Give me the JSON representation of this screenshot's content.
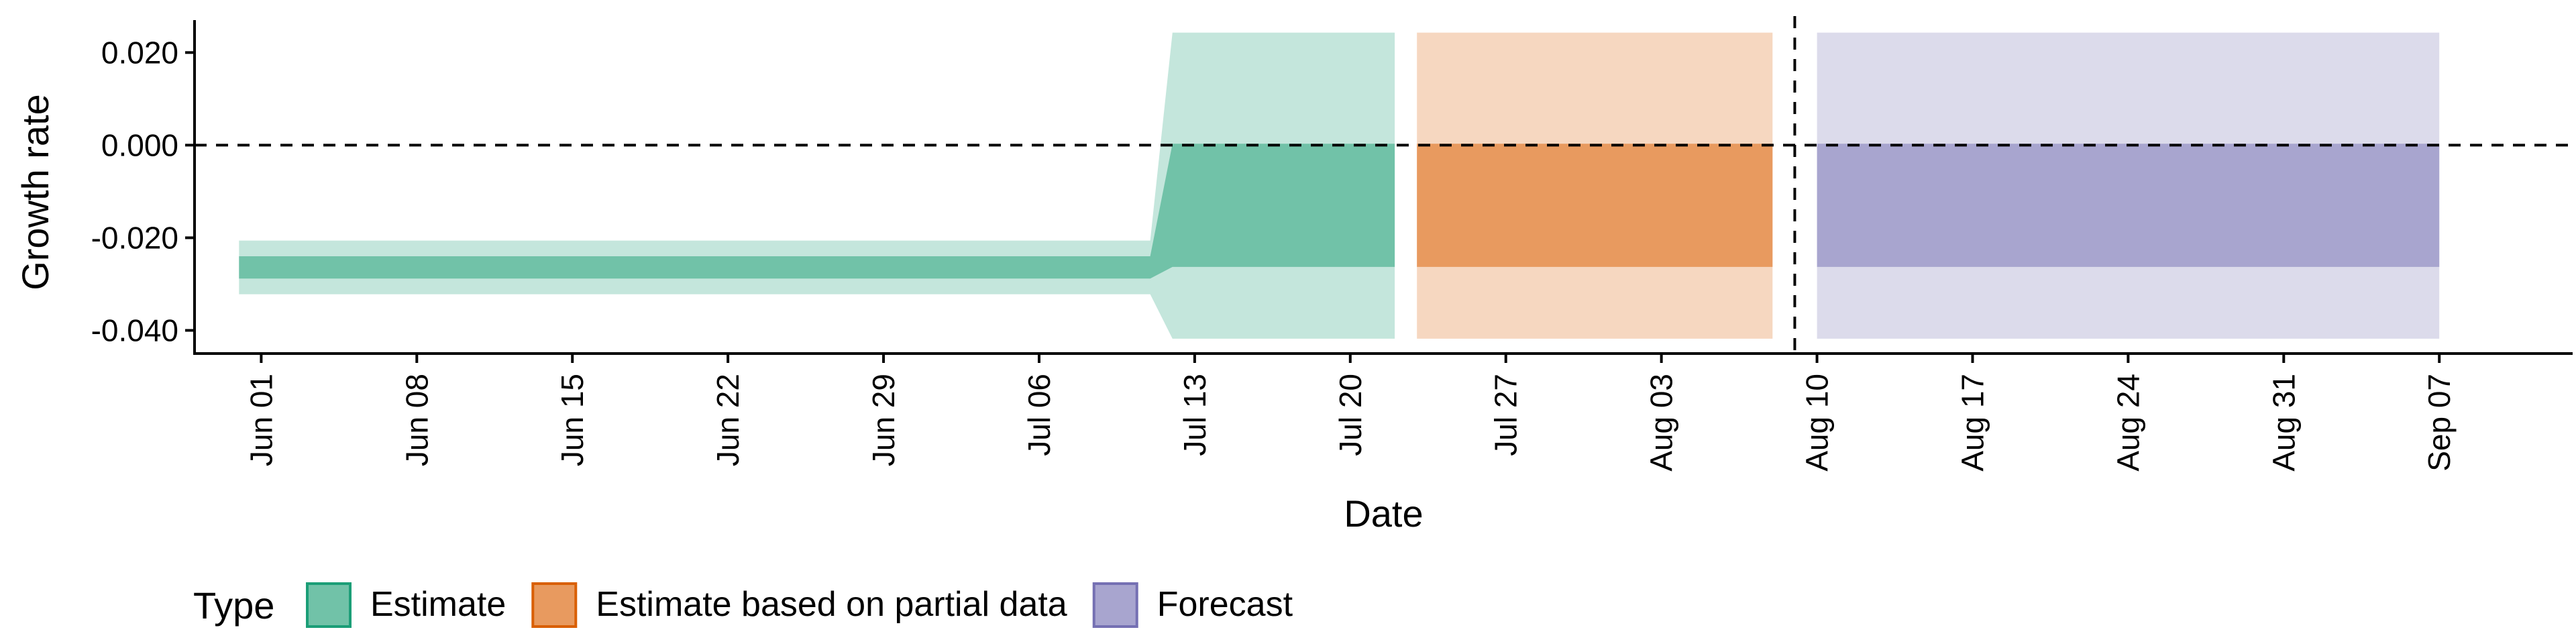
{
  "chart_data": {
    "type": "area",
    "xlabel": "Date",
    "ylabel": "Growth rate",
    "x_start_date": "2021-05-29",
    "x_end_date": "2021-09-13",
    "x_ticks": [
      {
        "date": "2021-06-01",
        "label": "Jun 01"
      },
      {
        "date": "2021-06-08",
        "label": "Jun 08"
      },
      {
        "date": "2021-06-15",
        "label": "Jun 15"
      },
      {
        "date": "2021-06-22",
        "label": "Jun 22"
      },
      {
        "date": "2021-06-29",
        "label": "Jun 29"
      },
      {
        "date": "2021-07-06",
        "label": "Jul 06"
      },
      {
        "date": "2021-07-13",
        "label": "Jul 13"
      },
      {
        "date": "2021-07-20",
        "label": "Jul 20"
      },
      {
        "date": "2021-07-27",
        "label": "Jul 27"
      },
      {
        "date": "2021-08-03",
        "label": "Aug 03"
      },
      {
        "date": "2021-08-10",
        "label": "Aug 10"
      },
      {
        "date": "2021-08-17",
        "label": "Aug 17"
      },
      {
        "date": "2021-08-24",
        "label": "Aug 24"
      },
      {
        "date": "2021-08-31",
        "label": "Aug 31"
      },
      {
        "date": "2021-09-07",
        "label": "Sep 07"
      }
    ],
    "ylim": [
      -0.045,
      0.027
    ],
    "y_ticks": [
      {
        "value": 0.02,
        "label": "0.020"
      },
      {
        "value": 0.0,
        "label": "0.000"
      },
      {
        "value": -0.02,
        "label": "-0.020"
      },
      {
        "value": -0.04,
        "label": "-0.040"
      }
    ],
    "hline_y": 0.0,
    "vline_x": "2021-08-09",
    "grid": false,
    "legend_position": "bottom-left",
    "legend_title": "Type",
    "series": [
      {
        "name": "Estimate",
        "color": "#1b9e77",
        "fill_inner": "#71c2a8",
        "fill_outer": "#c4e6dc",
        "x": [
          "2021-05-31",
          "2021-07-11",
          "2021-07-12",
          "2021-07-22"
        ],
        "inner_lower": [
          -0.0288,
          -0.0288,
          -0.0263,
          -0.0263
        ],
        "inner_upper": [
          -0.024,
          -0.024,
          0.0003,
          0.0003
        ],
        "outer_lower": [
          -0.0322,
          -0.0322,
          -0.0418,
          -0.0418
        ],
        "outer_upper": [
          -0.0206,
          -0.0206,
          0.0243,
          0.0243
        ]
      },
      {
        "name": "Estimate based on partial data",
        "color": "#d95f02",
        "fill_inner": "#e89a5f",
        "fill_outer": "#f6d7c0",
        "x": [
          "2021-07-23",
          "2021-08-08"
        ],
        "inner_lower": [
          -0.0263,
          -0.0263
        ],
        "inner_upper": [
          0.0003,
          0.0003
        ],
        "outer_lower": [
          -0.0418,
          -0.0418
        ],
        "outer_upper": [
          0.0243,
          0.0243
        ]
      },
      {
        "name": "Forecast",
        "color": "#7570b3",
        "fill_inner": "#a8a5cf",
        "fill_outer": "#dcdbeb",
        "x": [
          "2021-08-10",
          "2021-09-07"
        ],
        "inner_lower": [
          -0.0263,
          -0.0263
        ],
        "inner_upper": [
          0.0003,
          0.0003
        ],
        "outer_lower": [
          -0.0418,
          -0.0418
        ],
        "outer_upper": [
          0.0243,
          0.0243
        ]
      }
    ]
  }
}
